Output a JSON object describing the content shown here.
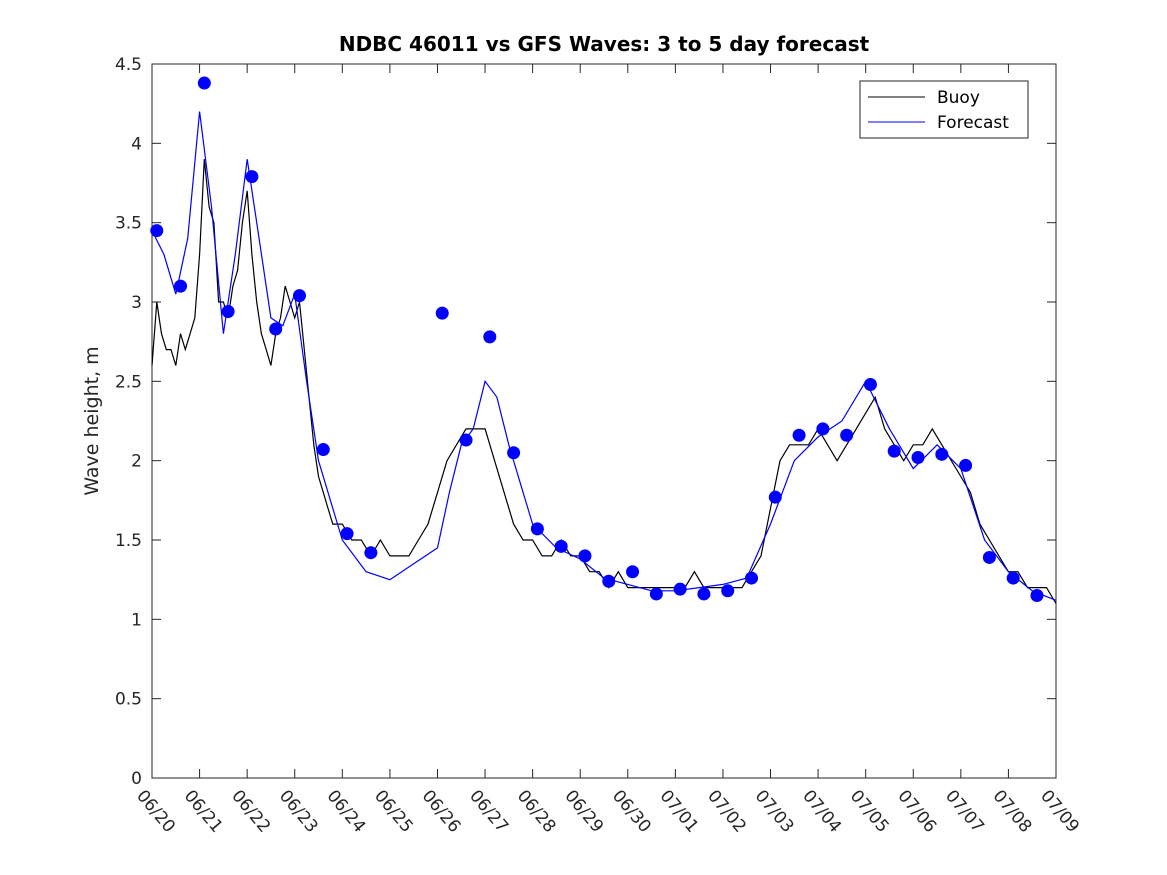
{
  "chart_data": {
    "type": "line",
    "title": "NDBC 46011 vs GFS Waves: 3 to 5 day forecast",
    "xlabel": "",
    "ylabel": "Wave height, m",
    "xlim": [
      "06/20",
      "07/09"
    ],
    "ylim": [
      0,
      4.5
    ],
    "x_tick_labels": [
      "06/20",
      "06/21",
      "06/22",
      "06/23",
      "06/24",
      "06/25",
      "06/26",
      "06/27",
      "06/28",
      "06/29",
      "06/30",
      "07/01",
      "07/02",
      "07/03",
      "07/04",
      "07/05",
      "07/06",
      "07/07",
      "07/08",
      "07/09"
    ],
    "y_tick_labels": [
      "0",
      "0.5",
      "1",
      "1.5",
      "2",
      "2.5",
      "3",
      "3.5",
      "4",
      "4.5"
    ],
    "legend": {
      "placement": "top-right",
      "entries": [
        "Buoy",
        "Forecast"
      ]
    },
    "colors": {
      "buoy": "#000000",
      "forecast": "#0000ff"
    },
    "series": [
      {
        "name": "Buoy",
        "style": "line",
        "x": [
          0.0,
          0.1,
          0.2,
          0.3,
          0.4,
          0.5,
          0.6,
          0.7,
          0.8,
          0.9,
          1.0,
          1.1,
          1.2,
          1.3,
          1.4,
          1.5,
          1.6,
          1.7,
          1.8,
          1.9,
          2.0,
          2.1,
          2.2,
          2.3,
          2.4,
          2.5,
          2.6,
          2.7,
          2.8,
          2.9,
          3.0,
          3.1,
          3.2,
          3.3,
          3.4,
          3.5,
          3.6,
          3.7,
          3.8,
          3.9,
          4.0,
          4.2,
          4.4,
          4.6,
          4.8,
          5.0,
          5.2,
          5.4,
          5.6,
          5.8,
          6.0,
          6.2,
          6.4,
          6.6,
          6.8,
          7.0,
          7.2,
          7.4,
          7.6,
          7.8,
          8.0,
          8.2,
          8.4,
          8.6,
          8.8,
          9.0,
          9.2,
          9.4,
          9.6,
          9.8,
          10.0,
          10.2,
          10.4,
          10.6,
          10.8,
          11.0,
          11.2,
          11.4,
          11.6,
          11.8,
          12.0,
          12.2,
          12.4,
          12.6,
          12.8,
          13.0,
          13.2,
          13.4,
          13.6,
          13.8,
          14.0,
          14.2,
          14.4,
          14.6,
          14.8,
          15.0,
          15.2,
          15.4,
          15.6,
          15.8,
          16.0,
          16.2,
          16.4,
          16.6,
          16.8,
          17.0,
          17.2,
          17.4,
          17.6,
          17.8,
          18.0,
          18.2,
          18.4,
          18.6,
          18.8,
          19.0
        ],
        "values": [
          2.6,
          3.0,
          2.8,
          2.7,
          2.7,
          2.6,
          2.8,
          2.7,
          2.8,
          2.9,
          3.3,
          3.9,
          3.6,
          3.5,
          3.0,
          3.0,
          2.9,
          3.1,
          3.2,
          3.5,
          3.7,
          3.3,
          3.0,
          2.8,
          2.7,
          2.6,
          2.8,
          2.9,
          3.1,
          3.0,
          2.9,
          3.0,
          2.7,
          2.4,
          2.1,
          1.9,
          1.8,
          1.7,
          1.6,
          1.6,
          1.6,
          1.5,
          1.5,
          1.4,
          1.5,
          1.4,
          1.4,
          1.4,
          1.5,
          1.6,
          1.8,
          2.0,
          2.1,
          2.2,
          2.2,
          2.2,
          2.0,
          1.8,
          1.6,
          1.5,
          1.5,
          1.4,
          1.4,
          1.5,
          1.4,
          1.4,
          1.3,
          1.3,
          1.2,
          1.3,
          1.2,
          1.2,
          1.2,
          1.2,
          1.2,
          1.2,
          1.2,
          1.3,
          1.2,
          1.2,
          1.2,
          1.2,
          1.2,
          1.3,
          1.4,
          1.7,
          2.0,
          2.1,
          2.1,
          2.1,
          2.2,
          2.1,
          2.0,
          2.1,
          2.2,
          2.3,
          2.4,
          2.2,
          2.1,
          2.0,
          2.1,
          2.1,
          2.2,
          2.1,
          2.0,
          1.9,
          1.8,
          1.6,
          1.5,
          1.4,
          1.3,
          1.3,
          1.2,
          1.2,
          1.2,
          1.1
        ]
      },
      {
        "name": "Forecast",
        "style": "line",
        "x": [
          0.0,
          0.25,
          0.5,
          0.75,
          1.0,
          1.25,
          1.5,
          1.75,
          2.0,
          2.25,
          2.5,
          2.75,
          3.0,
          3.25,
          3.5,
          4.0,
          4.5,
          5.0,
          5.5,
          6.0,
          6.25,
          6.5,
          6.75,
          7.0,
          7.25,
          7.5,
          8.0,
          8.5,
          9.0,
          9.5,
          10.0,
          10.5,
          11.0,
          11.5,
          12.0,
          12.5,
          13.0,
          13.5,
          14.0,
          14.5,
          15.0,
          15.5,
          16.0,
          16.5,
          17.0,
          17.5,
          18.0,
          18.5,
          19.0
        ],
        "values": [
          3.45,
          3.3,
          3.05,
          3.4,
          4.2,
          3.6,
          2.8,
          3.3,
          3.9,
          3.4,
          2.9,
          2.85,
          3.05,
          2.5,
          2.0,
          1.5,
          1.3,
          1.25,
          1.35,
          1.45,
          1.8,
          2.1,
          2.2,
          2.5,
          2.4,
          2.1,
          1.6,
          1.45,
          1.38,
          1.26,
          1.22,
          1.18,
          1.18,
          1.2,
          1.22,
          1.26,
          1.6,
          2.0,
          2.15,
          2.25,
          2.5,
          2.2,
          1.95,
          2.1,
          1.95,
          1.5,
          1.3,
          1.18,
          1.12
        ]
      },
      {
        "name": "Forecast",
        "style": "markers",
        "x": [
          0.1,
          0.6,
          1.1,
          1.6,
          2.1,
          2.6,
          3.1,
          3.6,
          4.1,
          4.6,
          6.1,
          6.6,
          7.1,
          7.6,
          8.1,
          8.6,
          9.1,
          9.6,
          10.1,
          10.6,
          11.1,
          11.6,
          12.1,
          12.6,
          13.1,
          13.6,
          14.1,
          14.6,
          15.1,
          15.6,
          16.1,
          16.6,
          17.1,
          17.6,
          18.1,
          18.6
        ],
        "values": [
          3.45,
          3.1,
          4.38,
          2.94,
          3.79,
          2.83,
          3.04,
          2.07,
          1.54,
          1.42,
          2.93,
          2.13,
          2.78,
          2.05,
          1.57,
          1.46,
          1.4,
          1.24,
          1.3,
          1.16,
          1.19,
          1.16,
          1.18,
          1.26,
          1.77,
          2.16,
          2.2,
          2.16,
          2.48,
          2.06,
          2.02,
          2.04,
          1.97,
          1.39,
          1.26,
          1.15
        ]
      }
    ]
  }
}
